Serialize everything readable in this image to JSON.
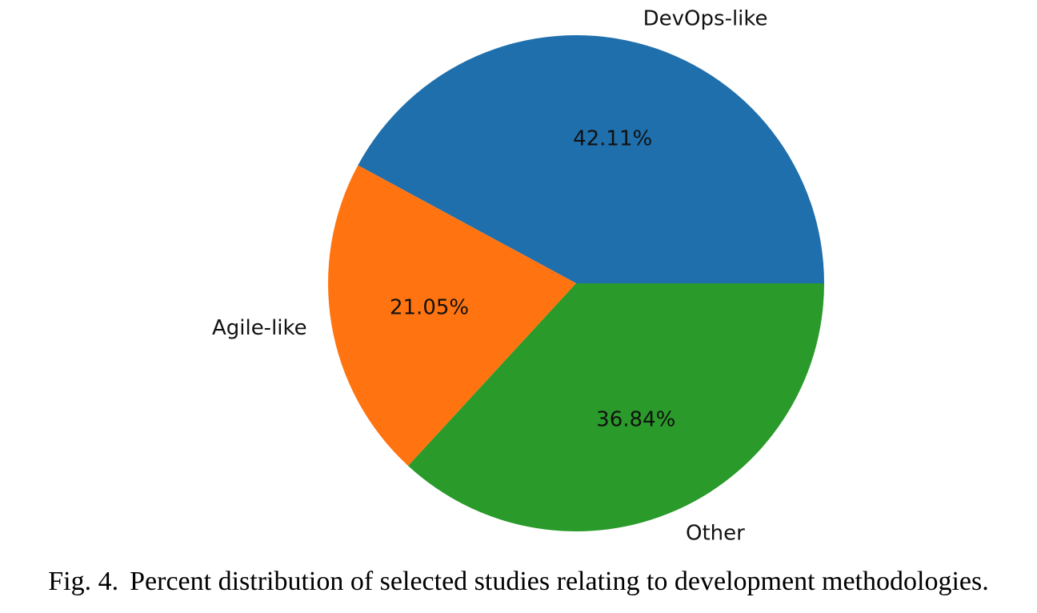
{
  "chart_data": {
    "type": "pie",
    "title": "",
    "start_angle_deg": 0,
    "direction": "counterclockwise",
    "slices": [
      {
        "label": "DevOps-like",
        "value": 42.11,
        "pct_label": "42.11%",
        "color": "#1f6fad"
      },
      {
        "label": "Agile-like",
        "value": 21.05,
        "pct_label": "21.05%",
        "color": "#ff7410"
      },
      {
        "label": "Other",
        "value": 36.84,
        "pct_label": "36.84%",
        "color": "#2a9a2a"
      }
    ]
  },
  "caption": {
    "figure_number": "Fig. 4.",
    "text": "Percent distribution of selected studies relating to development methodologies."
  }
}
